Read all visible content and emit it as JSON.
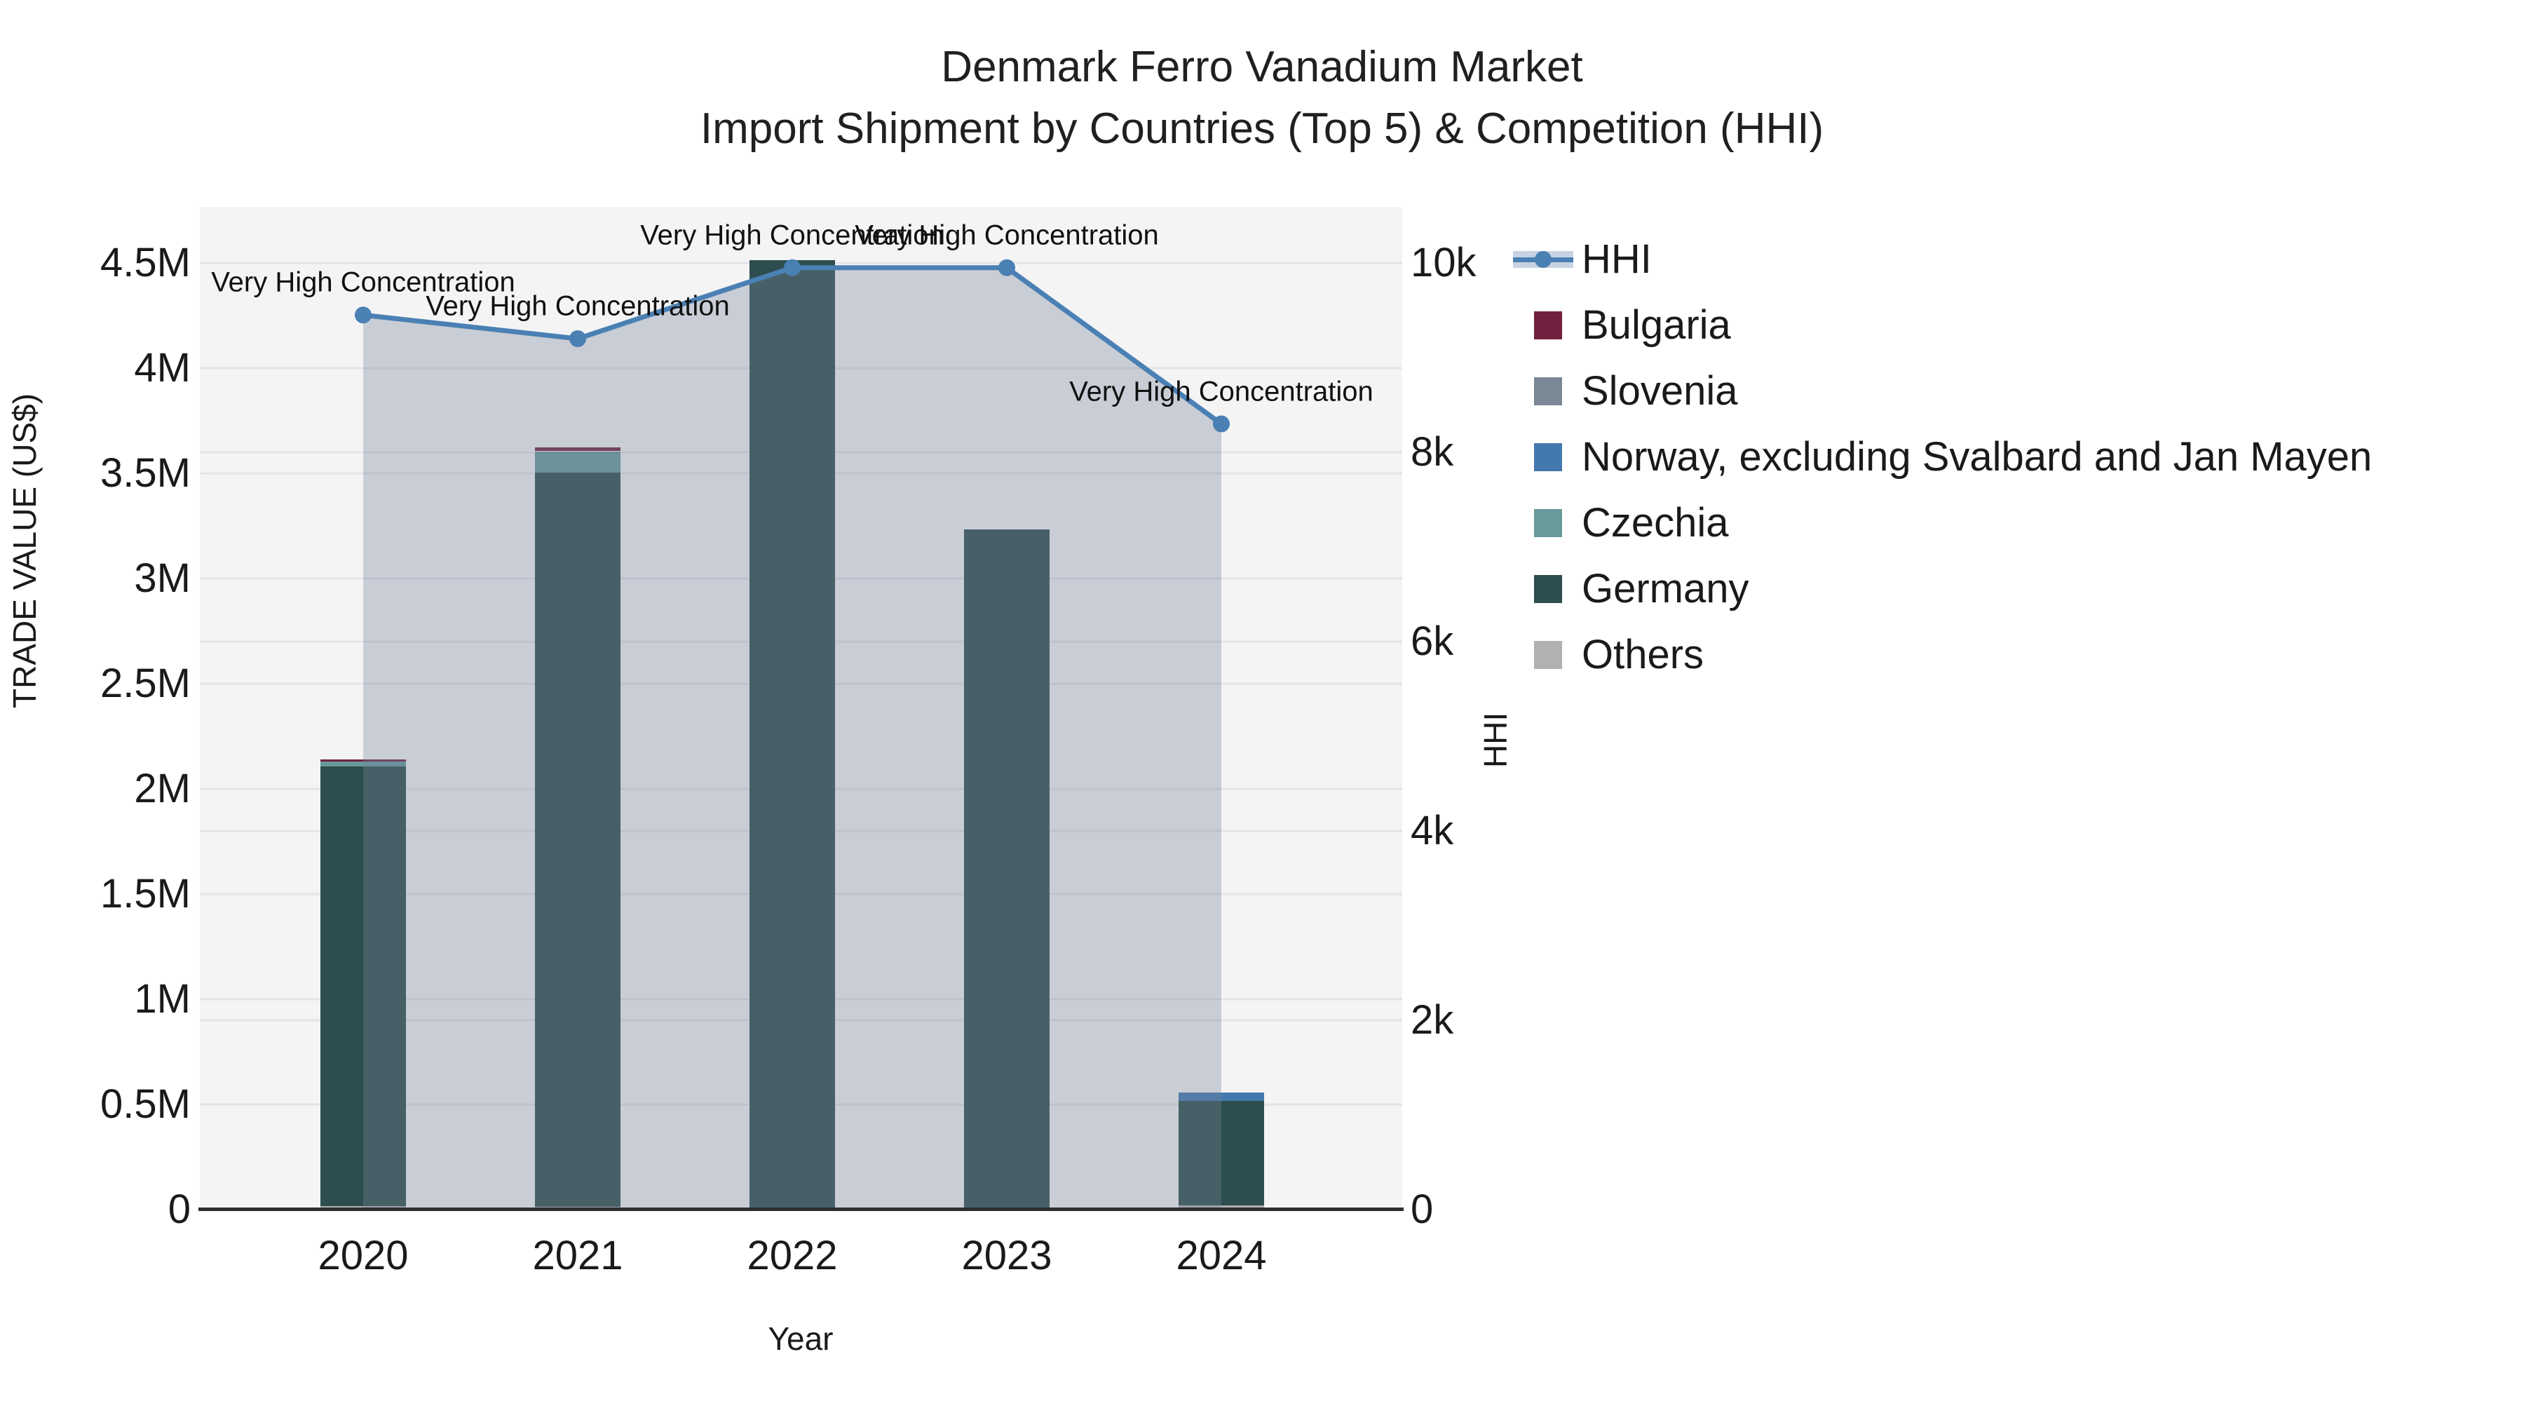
{
  "title": {
    "line1": "Denmark Ferro Vanadium Market",
    "line2": "Import Shipment by Countries (Top 5) & Competition (HHI)"
  },
  "axes": {
    "left": {
      "label": "TRADE VALUE (US$)",
      "ticks": [
        {
          "label": "0",
          "value": 0
        },
        {
          "label": "0.5M",
          "value": 500000
        },
        {
          "label": "1M",
          "value": 1000000
        },
        {
          "label": "1.5M",
          "value": 1500000
        },
        {
          "label": "2M",
          "value": 2000000
        },
        {
          "label": "2.5M",
          "value": 2500000
        },
        {
          "label": "3M",
          "value": 3000000
        },
        {
          "label": "3.5M",
          "value": 3500000
        },
        {
          "label": "4M",
          "value": 4000000
        },
        {
          "label": "4.5M",
          "value": 4500000
        }
      ],
      "max": 4500000
    },
    "right": {
      "label": "HHI",
      "ticks": [
        {
          "label": "0",
          "value": 0
        },
        {
          "label": "2k",
          "value": 2000
        },
        {
          "label": "4k",
          "value": 4000
        },
        {
          "label": "6k",
          "value": 6000
        },
        {
          "label": "8k",
          "value": 8000
        },
        {
          "label": "10k",
          "value": 10000
        }
      ],
      "max": 10000
    },
    "x": {
      "label": "Year",
      "categories": [
        "2020",
        "2021",
        "2022",
        "2023",
        "2024"
      ]
    }
  },
  "chart_data": {
    "type": "combo: stacked bar + line",
    "x": [
      "2020",
      "2021",
      "2022",
      "2023",
      "2024"
    ],
    "bars": {
      "unit": "US$ trade value",
      "stack_order_bottom_to_top": [
        "Others",
        "Germany",
        "Czechia",
        "Norway, excluding Svalbard and Jan Mayen",
        "Slovenia",
        "Bulgaria"
      ],
      "series": [
        {
          "name": "Bulgaria",
          "color": "#722040",
          "values": [
            10000,
            18000,
            0,
            0,
            0
          ]
        },
        {
          "name": "Slovenia",
          "color": "#7a8795",
          "values": [
            0,
            5000,
            0,
            0,
            0
          ]
        },
        {
          "name": "Norway, excluding Svalbard and Jan Mayen",
          "color": "#4379ae",
          "values": [
            0,
            0,
            0,
            0,
            40000
          ]
        },
        {
          "name": "Czechia",
          "color": "#68999b",
          "values": [
            23000,
            95000,
            0,
            0,
            0
          ]
        },
        {
          "name": "Germany",
          "color": "#2d4d4e",
          "values": [
            2090000,
            3490000,
            4505000,
            3225000,
            497000
          ]
        },
        {
          "name": "Others",
          "color": "#b1b1b4",
          "values": [
            18000,
            15000,
            10000,
            8000,
            20000
          ]
        }
      ],
      "totals_approx": [
        2141000,
        3623000,
        4515000,
        3233000,
        557000
      ]
    },
    "line": {
      "name": "HHI",
      "axis": "right",
      "color": "#4a80b4",
      "fill_color": "rgba(120,132,156,0.35)",
      "values": [
        9450,
        9200,
        9950,
        9950,
        8300
      ]
    },
    "annotations": [
      "Very High Concentration",
      "Very High Concentration",
      "Very High Concentration",
      "Very High Concentration",
      "Very High Concentration"
    ],
    "ylim_left": [
      0,
      4500000
    ],
    "ylim_right": [
      0,
      10000
    ],
    "grid": true,
    "legend_position": "right",
    "plot_bg_color": "#f4f4f5",
    "grid_color": "#e4e4e8",
    "axis_line_color": "#2e2e2e"
  },
  "legend": {
    "items": [
      {
        "label": "HHI",
        "type": "line",
        "color": "#4a80b4"
      },
      {
        "label": "Bulgaria",
        "type": "square",
        "color": "#722040"
      },
      {
        "label": "Slovenia",
        "type": "square",
        "color": "#7a8795"
      },
      {
        "label": "Norway, excluding Svalbard and Jan Mayen",
        "type": "square",
        "color": "#4379ae"
      },
      {
        "label": "Czechia",
        "type": "square",
        "color": "#68999b"
      },
      {
        "label": "Germany",
        "type": "square",
        "color": "#2d4d4e"
      },
      {
        "label": "Others",
        "type": "square",
        "color": "#b1b1b4"
      }
    ]
  }
}
